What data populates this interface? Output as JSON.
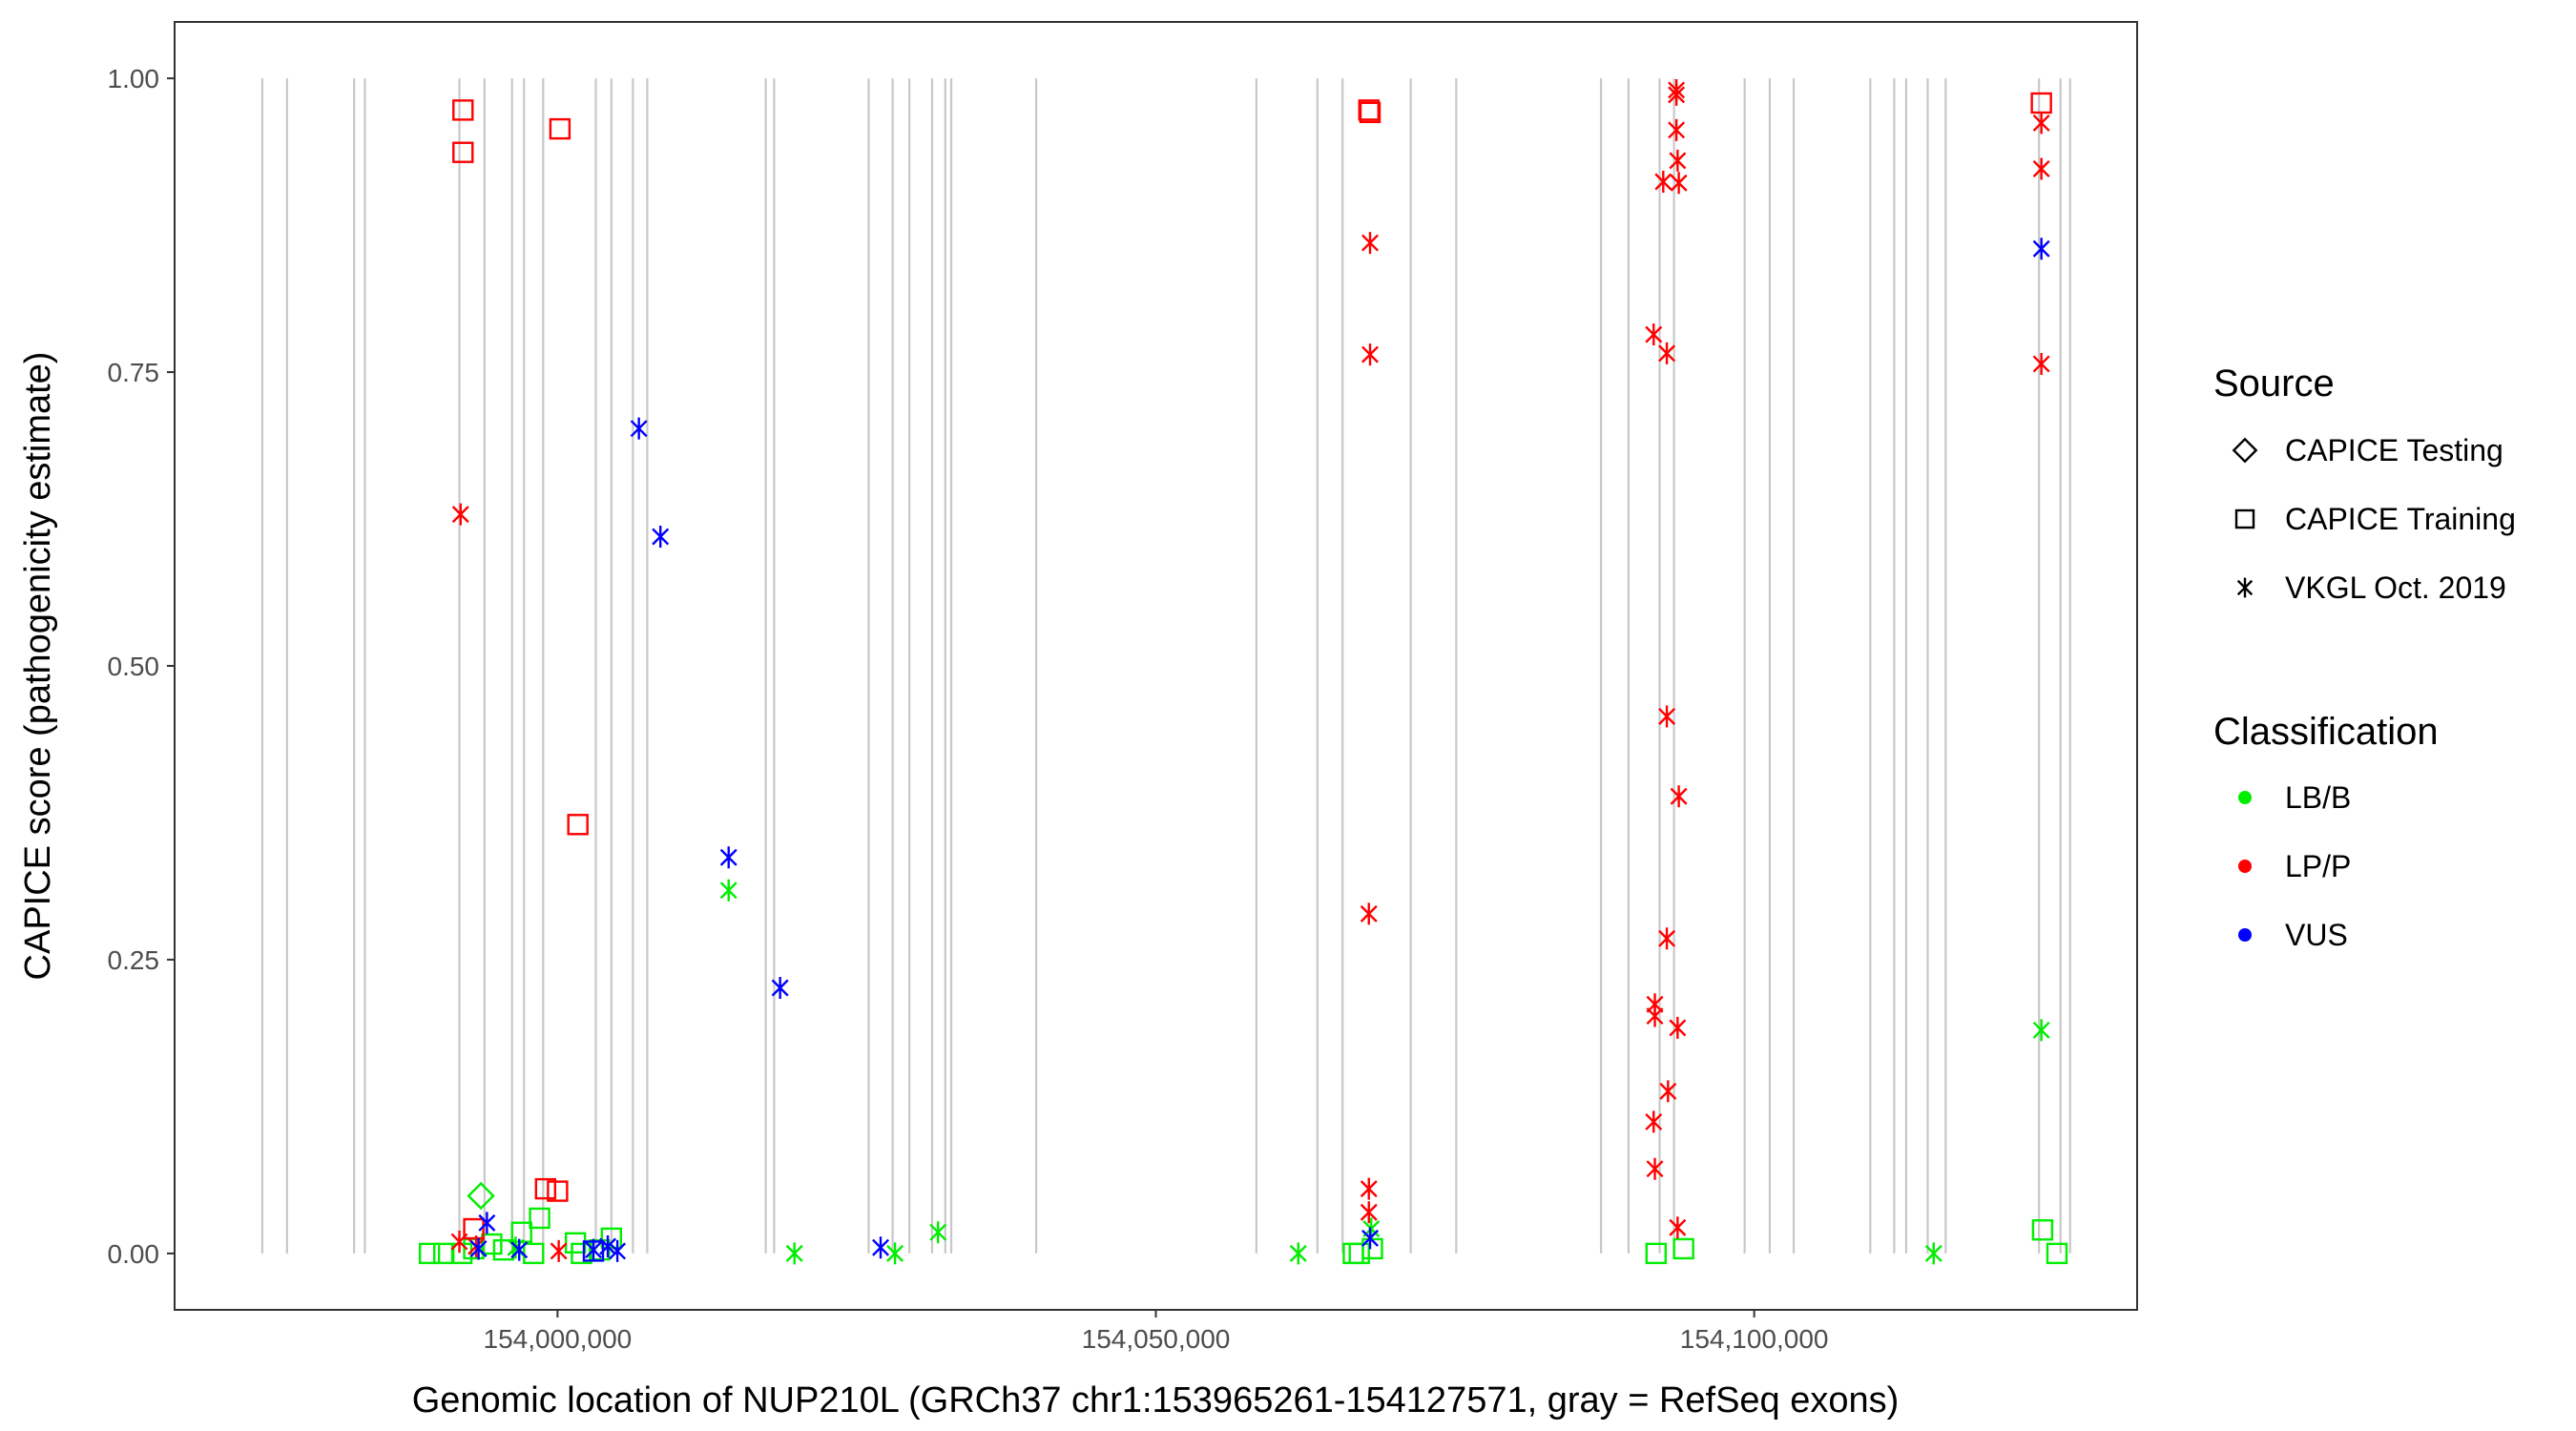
{
  "chart_data": {
    "type": "scatter",
    "xlabel": "Genomic location of NUP210L (GRCh37 chr1:153965261-154127571, gray = RefSeq exons)",
    "ylabel": "CAPICE score (pathogenicity estimate)",
    "xlim": [
      153968000,
      154132000
    ],
    "ylim": [
      -0.048,
      1.048
    ],
    "x_ticks": [
      {
        "value": 154000000,
        "label": "154,000,000"
      },
      {
        "value": 154050000,
        "label": "154,050,000"
      },
      {
        "value": 154100000,
        "label": "154,100,000"
      }
    ],
    "y_ticks": [
      {
        "value": 0.0,
        "label": "0.00"
      },
      {
        "value": 0.25,
        "label": "0.25"
      },
      {
        "value": 0.5,
        "label": "0.50"
      },
      {
        "value": 0.75,
        "label": "0.75"
      },
      {
        "value": 1.0,
        "label": "1.00"
      }
    ],
    "exon_positions": [
      153975330,
      153977400,
      153983000,
      153983900,
      153991800,
      153993900,
      153996200,
      153997200,
      153998800,
      154003200,
      154004500,
      154006300,
      154007500,
      154017400,
      154018100,
      154026000,
      154028000,
      154029400,
      154031300,
      154032400,
      154032900,
      154040000,
      154058400,
      154063500,
      154065600,
      154071300,
      154075100,
      154087200,
      154089500,
      154092100,
      154093300,
      154099200,
      154101300,
      154103300,
      154109700,
      154111700,
      154112700,
      154114500,
      154116000,
      154123800,
      154125600,
      154126400
    ],
    "legend_source": {
      "title": "Source",
      "items": [
        {
          "label": "CAPICE Testing",
          "shape": "diamond"
        },
        {
          "label": "CAPICE Training",
          "shape": "square"
        },
        {
          "label": "VKGL Oct. 2019",
          "shape": "asterisk"
        }
      ]
    },
    "legend_classification": {
      "title": "Classification",
      "items": [
        {
          "label": "LB/B",
          "color": "#00ee00"
        },
        {
          "label": "LP/P",
          "color": "#ff0000"
        },
        {
          "label": "VUS",
          "color": "#0000ff"
        }
      ]
    },
    "series": [
      {
        "source": "CAPICE Testing",
        "classification": "LB/B",
        "points": [
          [
            153993600,
            0.049
          ]
        ]
      },
      {
        "source": "CAPICE Training",
        "classification": "LB/B",
        "points": [
          [
            153989300,
            0.0
          ],
          [
            153990500,
            0.0
          ],
          [
            153992000,
            0.0
          ],
          [
            153993000,
            0.004
          ],
          [
            153994500,
            0.008
          ],
          [
            153995500,
            0.003
          ],
          [
            153997000,
            0.018
          ],
          [
            153998000,
            0.0
          ],
          [
            153998500,
            0.03
          ],
          [
            154001500,
            0.009
          ],
          [
            154002000,
            0.0
          ],
          [
            154003500,
            0.003
          ],
          [
            154004500,
            0.013
          ],
          [
            154066500,
            0.0
          ],
          [
            154067000,
            0.0
          ],
          [
            154068100,
            0.004
          ],
          [
            154091800,
            0.0
          ],
          [
            154094100,
            0.004
          ],
          [
            154124100,
            0.02
          ],
          [
            154125300,
            0.0
          ]
        ]
      },
      {
        "source": "CAPICE Training",
        "classification": "LP/P",
        "points": [
          [
            153992100,
            0.973
          ],
          [
            153992100,
            0.937
          ],
          [
            153993000,
            0.021
          ],
          [
            154000200,
            0.957
          ],
          [
            154001700,
            0.365
          ],
          [
            153999000,
            0.055
          ],
          [
            154000000,
            0.053
          ]
        ]
      },
      {
        "source": "CAPICE Training",
        "classification": "VUS",
        "points": [
          [
            154003000,
            0.002
          ]
        ]
      },
      {
        "source": "CAPICE Training",
        "classification": "LP/P",
        "points": [
          [
            154067800,
            0.973
          ],
          [
            154067900,
            0.971
          ],
          [
            154124000,
            0.979
          ]
        ]
      },
      {
        "source": "VKGL Oct. 2019",
        "classification": "LB/B",
        "points": [
          [
            153996500,
            0.005
          ],
          [
            154014300,
            0.309
          ],
          [
            154019800,
            0.0
          ],
          [
            154028200,
            0.0
          ],
          [
            154031800,
            0.018
          ],
          [
            154061900,
            0.0
          ],
          [
            154068000,
            0.021
          ],
          [
            154115000,
            0.0
          ],
          [
            154124000,
            0.19
          ]
        ]
      },
      {
        "source": "VKGL Oct. 2019",
        "classification": "LP/P",
        "points": [
          [
            153991900,
            0.629
          ],
          [
            153991800,
            0.01
          ],
          [
            153993200,
            0.006
          ],
          [
            154000100,
            0.002
          ],
          [
            154067900,
            0.86
          ],
          [
            154067900,
            0.765
          ],
          [
            154067800,
            0.289
          ],
          [
            154067800,
            0.055
          ],
          [
            154067800,
            0.035
          ],
          [
            154091600,
            0.782
          ],
          [
            154092700,
            0.766
          ],
          [
            154092400,
            0.912
          ],
          [
            154093700,
            0.911
          ],
          [
            154093500,
            0.99
          ],
          [
            154093500,
            0.986
          ],
          [
            154093500,
            0.956
          ],
          [
            154093600,
            0.93
          ],
          [
            154092700,
            0.457
          ],
          [
            154093700,
            0.389
          ],
          [
            154092700,
            0.268
          ],
          [
            154091700,
            0.212
          ],
          [
            154091700,
            0.202
          ],
          [
            154093600,
            0.192
          ],
          [
            154092800,
            0.138
          ],
          [
            154091600,
            0.112
          ],
          [
            154091700,
            0.072
          ],
          [
            154093600,
            0.022
          ],
          [
            154124000,
            0.962
          ],
          [
            154124000,
            0.923
          ],
          [
            154124000,
            0.757
          ]
        ]
      },
      {
        "source": "VKGL Oct. 2019",
        "classification": "VUS",
        "points": [
          [
            154006800,
            0.702
          ],
          [
            154008600,
            0.61
          ],
          [
            154014300,
            0.337
          ],
          [
            154018600,
            0.226
          ],
          [
            153994100,
            0.026
          ],
          [
            153993400,
            0.004
          ],
          [
            153996800,
            0.003
          ],
          [
            154003000,
            0.003
          ],
          [
            154004200,
            0.006
          ],
          [
            154005000,
            0.002
          ],
          [
            154027000,
            0.005
          ],
          [
            154067900,
            0.013
          ],
          [
            154124000,
            0.855
          ]
        ]
      }
    ]
  }
}
